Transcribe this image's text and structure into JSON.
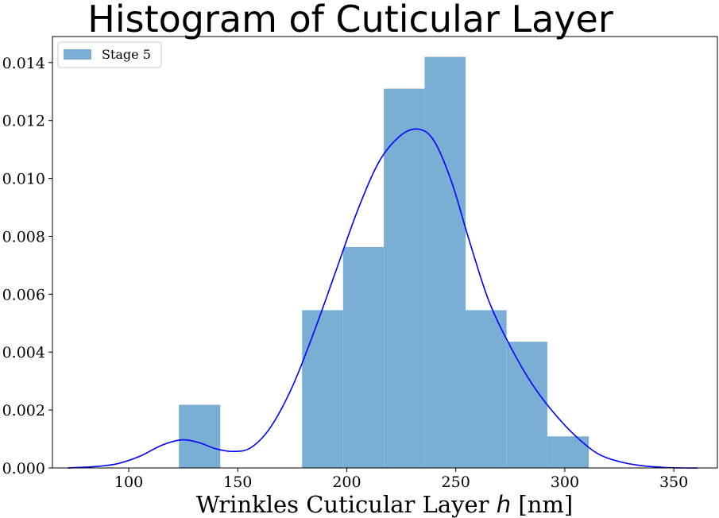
{
  "chart_data": {
    "type": "bar",
    "title": "Histogram of Cuticular Layer",
    "xlabel": {
      "prefix": "Wrinkles Cuticular Layer ",
      "var": "h",
      "suffix": " [nm]"
    },
    "ylabel": "",
    "xlim": [
      65,
      370
    ],
    "ylim": [
      0,
      0.0149
    ],
    "x_ticks": [
      100,
      150,
      200,
      250,
      300,
      350
    ],
    "x_tick_labels": [
      "100",
      "150",
      "200",
      "250",
      "300",
      "350"
    ],
    "y_ticks": [
      0,
      0.002,
      0.004,
      0.006,
      0.008,
      0.01,
      0.012,
      0.014
    ],
    "y_tick_labels": [
      "0.000",
      "0.002",
      "0.004",
      "0.006",
      "0.008",
      "0.010",
      "0.012",
      "0.014"
    ],
    "grid": false,
    "legend": {
      "placement": "top-left",
      "entries": [
        "Stage 5"
      ]
    },
    "histogram": {
      "name": "Stage 5",
      "color": "#7aaed4",
      "bins": [
        {
          "x0": 123,
          "x1": 142,
          "density": 0.00218
        },
        {
          "x0": 142,
          "x1": 161,
          "density": 0.0
        },
        {
          "x0": 161,
          "x1": 179.5,
          "density": 0.0
        },
        {
          "x0": 179.5,
          "x1": 198.3,
          "density": 0.00545
        },
        {
          "x0": 198.3,
          "x1": 217,
          "density": 0.00763
        },
        {
          "x0": 217,
          "x1": 235.7,
          "density": 0.0131
        },
        {
          "x0": 235.7,
          "x1": 254.5,
          "density": 0.0142
        },
        {
          "x0": 254.5,
          "x1": 273.3,
          "density": 0.00545
        },
        {
          "x0": 273.3,
          "x1": 292,
          "density": 0.00436
        },
        {
          "x0": 292,
          "x1": 311,
          "density": 0.00109
        }
      ]
    },
    "density_curve": {
      "color": "#0000ff",
      "x": [
        72,
        85,
        95,
        105,
        115,
        124,
        132,
        140,
        148,
        156,
        165,
        175,
        185,
        195,
        205,
        215,
        225,
        233,
        240,
        248,
        256,
        265,
        275,
        285,
        295,
        305,
        315,
        325,
        335,
        345,
        355,
        361
      ],
      "y": [
        0.0,
        5e-05,
        0.00015,
        0.0004,
        0.00078,
        0.00097,
        0.00088,
        0.00066,
        0.00057,
        0.0007,
        0.0014,
        0.0028,
        0.0047,
        0.0068,
        0.0089,
        0.0106,
        0.0115,
        0.0117,
        0.0113,
        0.0099,
        0.0079,
        0.0058,
        0.0042,
        0.0029,
        0.0019,
        0.0011,
        0.0005,
        0.00022,
        8e-05,
        2e-05,
        0.0,
        0.0
      ]
    }
  }
}
